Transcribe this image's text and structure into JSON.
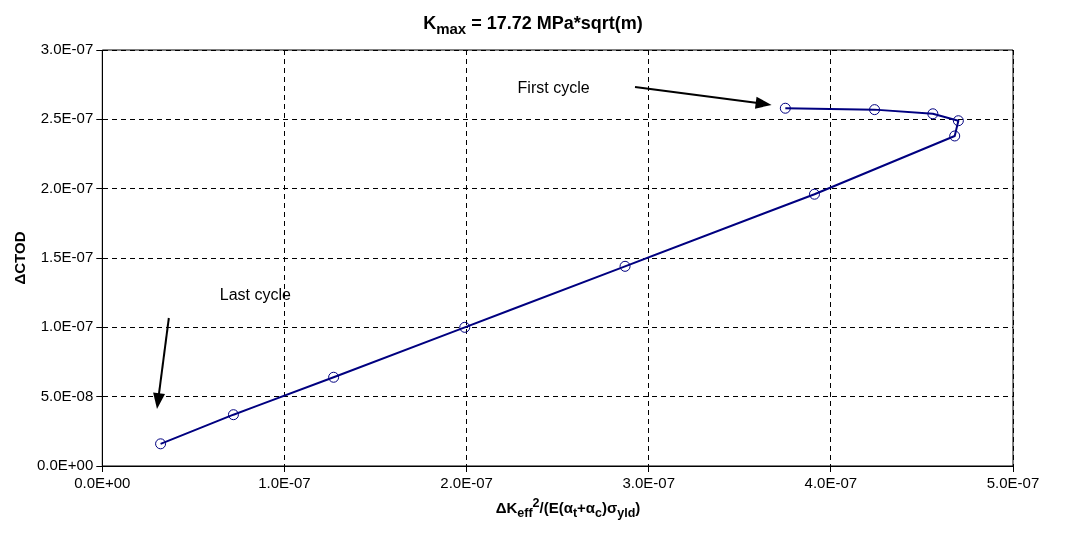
{
  "chart_data": {
    "type": "line",
    "title": "K$_{max}$ = 17.72 MPa*sqrt(m)",
    "xlabel": "ΔK$_{eff}$$^{2}$/(E(α$_{t}$+α$_{c}$)σ$_{yld}$)",
    "ylabel": "ΔCTOD",
    "x": [
      3.75e-07,
      4.24e-07,
      4.56e-07,
      4.7e-07,
      4.68e-07,
      3.91e-07,
      2.87e-07,
      1.99e-07,
      1.27e-07,
      7.2e-08,
      3.2e-08
    ],
    "series": [
      {
        "color": "#000080",
        "values": [
          2.58e-07,
          2.57e-07,
          2.54e-07,
          2.49e-07,
          2.38e-07,
          1.96e-07,
          1.44e-07,
          1e-07,
          6.4e-08,
          3.7e-08,
          1.6e-08
        ]
      }
    ],
    "xlim": [
      0,
      5e-07
    ],
    "xticks": [
      {
        "value": 0,
        "label": "0.0E+00"
      },
      {
        "value": 1e-07,
        "label": "1.0E-07"
      },
      {
        "value": 2e-07,
        "label": "2.0E-07"
      },
      {
        "value": 3e-07,
        "label": "3.0E-07"
      },
      {
        "value": 4e-07,
        "label": "4.0E-07"
      },
      {
        "value": 5e-07,
        "label": "5.0E-07"
      }
    ],
    "ylim": [
      0,
      3e-07
    ],
    "yticks": [
      {
        "value": 0,
        "label": "0.0E+00"
      },
      {
        "value": 5e-08,
        "label": "5.0E-08"
      },
      {
        "value": 1e-07,
        "label": "1.0E-07"
      },
      {
        "value": 1.5e-07,
        "label": "1.5E-07"
      },
      {
        "value": 2e-07,
        "label": "2.0E-07"
      },
      {
        "value": 2.5e-07,
        "label": "2.5E-07"
      },
      {
        "value": 3e-07,
        "label": "3.0E-07"
      }
    ],
    "annotations": [
      "First cycle",
      "Last cycle"
    ],
    "grid": true,
    "legend": false,
    "marker": "circle",
    "line_style": "solid"
  }
}
